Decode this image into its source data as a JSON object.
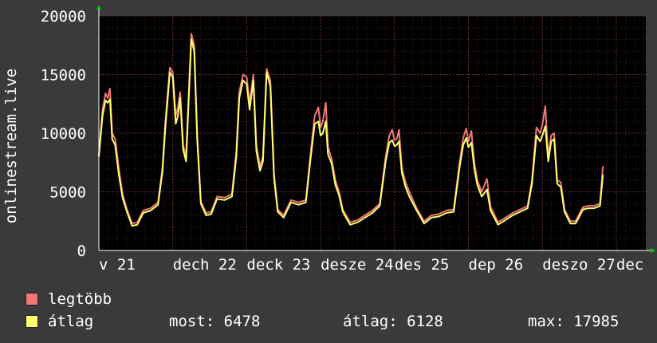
{
  "chart_data": {
    "type": "line",
    "ylabel": "onlinestream.live",
    "ylim": [
      0,
      20000
    ],
    "yticks": [
      0,
      5000,
      10000,
      15000,
      20000
    ],
    "xlim": [
      0,
      7.4
    ],
    "xticks": [
      {
        "pos": 0.0,
        "label": "v 21"
      },
      {
        "pos": 1.0,
        "label": "dech 22"
      },
      {
        "pos": 2.0,
        "label": "deck 23"
      },
      {
        "pos": 3.0,
        "label": "desze 24"
      },
      {
        "pos": 4.0,
        "label": "des 25"
      },
      {
        "pos": 5.0,
        "label": "dep 26"
      },
      {
        "pos": 6.0,
        "label": "deszo 27"
      },
      {
        "pos": 7.0,
        "label": "dec"
      }
    ],
    "grid": true,
    "colors": {
      "background": "#000000",
      "grid": "#5a2a2a",
      "legtobb": "#f07878",
      "atlag": "#ffff70",
      "axis": "#ffffff",
      "arrow": "#00cc00"
    },
    "series": [
      {
        "name": "legtöbb",
        "color": "#f07878",
        "points": [
          [
            0.0,
            8200
          ],
          [
            0.05,
            12000
          ],
          [
            0.09,
            13400
          ],
          [
            0.12,
            13000
          ],
          [
            0.15,
            13800
          ],
          [
            0.18,
            10000
          ],
          [
            0.22,
            9500
          ],
          [
            0.27,
            7000
          ],
          [
            0.32,
            4800
          ],
          [
            0.38,
            3500
          ],
          [
            0.45,
            2300
          ],
          [
            0.52,
            2400
          ],
          [
            0.6,
            3400
          ],
          [
            0.7,
            3600
          ],
          [
            0.8,
            4100
          ],
          [
            0.86,
            7000
          ],
          [
            0.9,
            11000
          ],
          [
            0.96,
            15600
          ],
          [
            1.0,
            15200
          ],
          [
            1.04,
            11500
          ],
          [
            1.07,
            12200
          ],
          [
            1.1,
            13500
          ],
          [
            1.14,
            9000
          ],
          [
            1.18,
            8000
          ],
          [
            1.2,
            11000
          ],
          [
            1.25,
            18500
          ],
          [
            1.29,
            17500
          ],
          [
            1.33,
            10000
          ],
          [
            1.38,
            4200
          ],
          [
            1.45,
            3200
          ],
          [
            1.52,
            3300
          ],
          [
            1.6,
            4600
          ],
          [
            1.7,
            4500
          ],
          [
            1.8,
            4800
          ],
          [
            1.86,
            8500
          ],
          [
            1.9,
            13500
          ],
          [
            1.95,
            15000
          ],
          [
            2.0,
            14800
          ],
          [
            2.04,
            12500
          ],
          [
            2.09,
            15000
          ],
          [
            2.13,
            9000
          ],
          [
            2.18,
            7200
          ],
          [
            2.22,
            8000
          ],
          [
            2.27,
            15500
          ],
          [
            2.32,
            14500
          ],
          [
            2.37,
            6500
          ],
          [
            2.42,
            3500
          ],
          [
            2.5,
            3000
          ],
          [
            2.6,
            4300
          ],
          [
            2.7,
            4100
          ],
          [
            2.8,
            4300
          ],
          [
            2.86,
            8000
          ],
          [
            2.92,
            11500
          ],
          [
            2.97,
            12200
          ],
          [
            3.0,
            10500
          ],
          [
            3.03,
            11000
          ],
          [
            3.07,
            12600
          ],
          [
            3.1,
            8800
          ],
          [
            3.15,
            7800
          ],
          [
            3.2,
            6000
          ],
          [
            3.25,
            5000
          ],
          [
            3.3,
            3500
          ],
          [
            3.4,
            2400
          ],
          [
            3.5,
            2600
          ],
          [
            3.6,
            3000
          ],
          [
            3.7,
            3400
          ],
          [
            3.8,
            4000
          ],
          [
            3.88,
            8000
          ],
          [
            3.93,
            9800
          ],
          [
            3.97,
            10300
          ],
          [
            4.0,
            9400
          ],
          [
            4.03,
            9500
          ],
          [
            4.06,
            10300
          ],
          [
            4.1,
            7000
          ],
          [
            4.15,
            5800
          ],
          [
            4.2,
            5000
          ],
          [
            4.3,
            3600
          ],
          [
            4.4,
            2500
          ],
          [
            4.5,
            3000
          ],
          [
            4.6,
            3100
          ],
          [
            4.7,
            3400
          ],
          [
            4.8,
            3500
          ],
          [
            4.88,
            7500
          ],
          [
            4.93,
            9600
          ],
          [
            4.97,
            10400
          ],
          [
            5.0,
            9300
          ],
          [
            5.04,
            10200
          ],
          [
            5.08,
            7500
          ],
          [
            5.12,
            6000
          ],
          [
            5.18,
            5000
          ],
          [
            5.25,
            6100
          ],
          [
            5.3,
            3700
          ],
          [
            5.4,
            2400
          ],
          [
            5.5,
            2800
          ],
          [
            5.6,
            3200
          ],
          [
            5.7,
            3500
          ],
          [
            5.8,
            3800
          ],
          [
            5.86,
            6000
          ],
          [
            5.92,
            10500
          ],
          [
            5.97,
            10000
          ],
          [
            6.0,
            10700
          ],
          [
            6.04,
            12300
          ],
          [
            6.08,
            8000
          ],
          [
            6.12,
            9800
          ],
          [
            6.16,
            10000
          ],
          [
            6.2,
            6000
          ],
          [
            6.25,
            5800
          ],
          [
            6.3,
            3500
          ],
          [
            6.38,
            2500
          ],
          [
            6.45,
            2500
          ],
          [
            6.55,
            3700
          ],
          [
            6.62,
            3800
          ],
          [
            6.7,
            3800
          ],
          [
            6.78,
            4000
          ],
          [
            6.82,
            7200
          ]
        ]
      },
      {
        "name": "átlag",
        "color": "#ffff70",
        "points": [
          [
            0.0,
            8000
          ],
          [
            0.05,
            11500
          ],
          [
            0.09,
            12800
          ],
          [
            0.12,
            12600
          ],
          [
            0.15,
            12900
          ],
          [
            0.18,
            9500
          ],
          [
            0.22,
            9000
          ],
          [
            0.27,
            6500
          ],
          [
            0.32,
            4500
          ],
          [
            0.38,
            3300
          ],
          [
            0.45,
            2100
          ],
          [
            0.52,
            2200
          ],
          [
            0.6,
            3200
          ],
          [
            0.7,
            3400
          ],
          [
            0.8,
            3900
          ],
          [
            0.86,
            6700
          ],
          [
            0.9,
            10500
          ],
          [
            0.96,
            15200
          ],
          [
            1.0,
            14800
          ],
          [
            1.04,
            10800
          ],
          [
            1.07,
            11500
          ],
          [
            1.1,
            13000
          ],
          [
            1.14,
            8600
          ],
          [
            1.18,
            7600
          ],
          [
            1.2,
            10500
          ],
          [
            1.25,
            18000
          ],
          [
            1.29,
            17000
          ],
          [
            1.33,
            9500
          ],
          [
            1.38,
            4000
          ],
          [
            1.45,
            3000
          ],
          [
            1.52,
            3100
          ],
          [
            1.6,
            4400
          ],
          [
            1.7,
            4300
          ],
          [
            1.8,
            4600
          ],
          [
            1.86,
            8000
          ],
          [
            1.9,
            13000
          ],
          [
            1.95,
            14500
          ],
          [
            2.0,
            14200
          ],
          [
            2.04,
            12000
          ],
          [
            2.09,
            14500
          ],
          [
            2.13,
            8500
          ],
          [
            2.18,
            6800
          ],
          [
            2.22,
            7600
          ],
          [
            2.27,
            15200
          ],
          [
            2.32,
            14000
          ],
          [
            2.37,
            6200
          ],
          [
            2.42,
            3300
          ],
          [
            2.5,
            2800
          ],
          [
            2.6,
            4100
          ],
          [
            2.7,
            3900
          ],
          [
            2.8,
            4100
          ],
          [
            2.86,
            7600
          ],
          [
            2.92,
            10800
          ],
          [
            2.97,
            11000
          ],
          [
            3.0,
            9800
          ],
          [
            3.03,
            10000
          ],
          [
            3.07,
            11000
          ],
          [
            3.1,
            8200
          ],
          [
            3.15,
            7400
          ],
          [
            3.2,
            5600
          ],
          [
            3.25,
            4700
          ],
          [
            3.3,
            3300
          ],
          [
            3.4,
            2200
          ],
          [
            3.5,
            2400
          ],
          [
            3.6,
            2800
          ],
          [
            3.7,
            3200
          ],
          [
            3.8,
            3800
          ],
          [
            3.88,
            7600
          ],
          [
            3.93,
            9200
          ],
          [
            3.97,
            9400
          ],
          [
            4.0,
            8900
          ],
          [
            4.03,
            9000
          ],
          [
            4.06,
            9300
          ],
          [
            4.1,
            6600
          ],
          [
            4.15,
            5400
          ],
          [
            4.2,
            4600
          ],
          [
            4.3,
            3400
          ],
          [
            4.4,
            2300
          ],
          [
            4.5,
            2800
          ],
          [
            4.6,
            2900
          ],
          [
            4.7,
            3200
          ],
          [
            4.8,
            3300
          ],
          [
            4.88,
            7100
          ],
          [
            4.93,
            9000
          ],
          [
            4.97,
            9600
          ],
          [
            5.0,
            8800
          ],
          [
            5.04,
            9200
          ],
          [
            5.08,
            7000
          ],
          [
            5.12,
            5600
          ],
          [
            5.18,
            4600
          ],
          [
            5.25,
            5200
          ],
          [
            5.3,
            3400
          ],
          [
            5.4,
            2200
          ],
          [
            5.5,
            2600
          ],
          [
            5.6,
            3000
          ],
          [
            5.7,
            3300
          ],
          [
            5.8,
            3600
          ],
          [
            5.86,
            5700
          ],
          [
            5.92,
            9800
          ],
          [
            5.97,
            9300
          ],
          [
            6.0,
            9800
          ],
          [
            6.04,
            10600
          ],
          [
            6.08,
            7600
          ],
          [
            6.12,
            9300
          ],
          [
            6.16,
            9500
          ],
          [
            6.2,
            5700
          ],
          [
            6.25,
            5400
          ],
          [
            6.3,
            3300
          ],
          [
            6.38,
            2300
          ],
          [
            6.45,
            2300
          ],
          [
            6.55,
            3500
          ],
          [
            6.62,
            3600
          ],
          [
            6.7,
            3600
          ],
          [
            6.78,
            3800
          ],
          [
            6.82,
            6478
          ]
        ]
      }
    ]
  },
  "legend": {
    "max_label": "legtöbb",
    "avg_label": "átlag"
  },
  "stats": {
    "now": "most: 6478",
    "avg": "átlag: 6128",
    "max": "max: 17985"
  }
}
